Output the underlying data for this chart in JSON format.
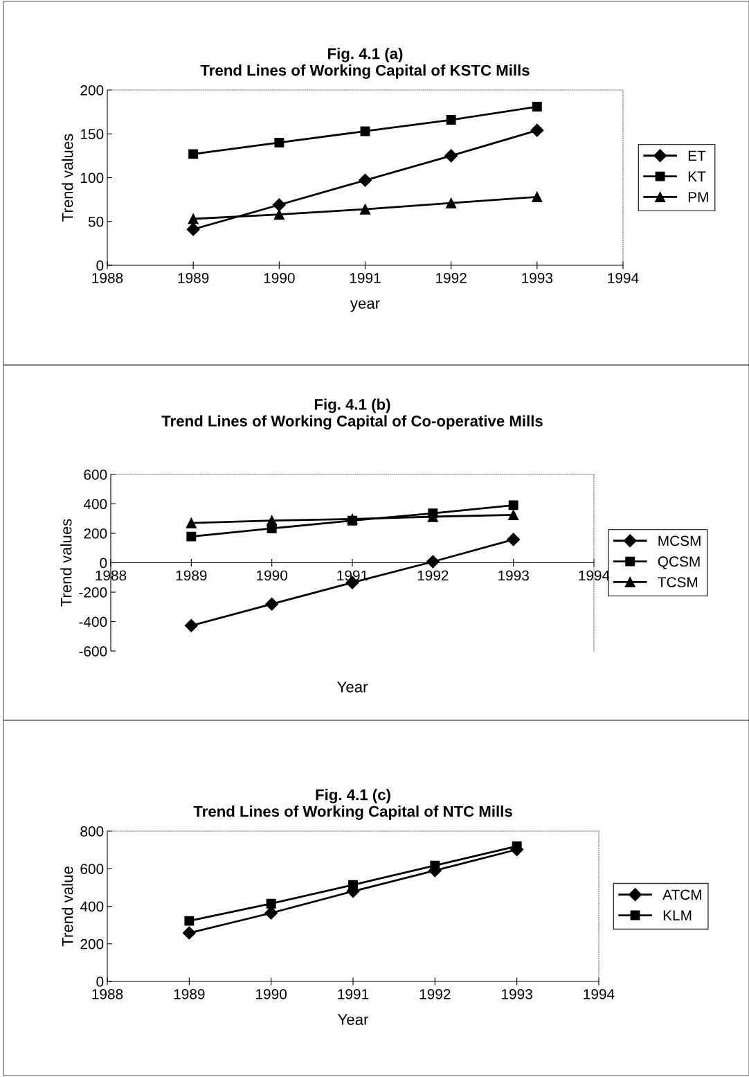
{
  "chart_data": [
    {
      "type": "line",
      "title": "Fig. 4.1 (a)\nTrend Lines of Working Capital of KSTC Mills",
      "xlabel": "year",
      "ylabel": "Trend values",
      "x": [
        1989,
        1990,
        1991,
        1992,
        1993
      ],
      "xlim": [
        1988,
        1994
      ],
      "xticks": [
        1988,
        1989,
        1990,
        1991,
        1992,
        1993,
        1994
      ],
      "ylim": [
        0,
        200
      ],
      "yticks": [
        0,
        50,
        100,
        150,
        200
      ],
      "legend": "right",
      "grid": false,
      "line_style": "solid",
      "series": [
        {
          "name": "ET",
          "color": "#000000",
          "marker": "diamond",
          "values": [
            41,
            69,
            97,
            125,
            154
          ]
        },
        {
          "name": "KT",
          "color": "#000000",
          "marker": "square",
          "values": [
            127,
            140,
            153,
            166,
            181
          ]
        },
        {
          "name": "PM",
          "color": "#000000",
          "marker": "triangle",
          "values": [
            53,
            58,
            64,
            71,
            78
          ]
        }
      ]
    },
    {
      "type": "line",
      "title": "Fig. 4.1 (b)\nTrend Lines of Working Capital of Co-operative Mills",
      "xlabel": "Year",
      "ylabel": "Trend values",
      "x": [
        1989,
        1990,
        1991,
        1992,
        1993
      ],
      "xlim": [
        1988,
        1994
      ],
      "xticks": [
        1988,
        1989,
        1990,
        1991,
        1992,
        1993,
        1994
      ],
      "ylim": [
        -600,
        600
      ],
      "yticks": [
        -600,
        -400,
        -200,
        0,
        200,
        400,
        600
      ],
      "legend": "right",
      "grid": false,
      "line_style": "solid",
      "series": [
        {
          "name": "MCSM",
          "color": "#000000",
          "marker": "diamond",
          "values": [
            -427,
            -281,
            -135,
            7,
            158
          ]
        },
        {
          "name": "QCSM",
          "color": "#000000",
          "marker": "square",
          "values": [
            178,
            233,
            286,
            336,
            391
          ]
        },
        {
          "name": "TCSM",
          "color": "#000000",
          "marker": "triangle",
          "values": [
            270,
            286,
            297,
            313,
            325
          ]
        }
      ]
    },
    {
      "type": "line",
      "title": "Fig. 4.1 (c)\nTrend Lines of Working Capital of NTC Mills",
      "xlabel": "Year",
      "ylabel": "Trend value",
      "x": [
        1989,
        1990,
        1991,
        1992,
        1993
      ],
      "xlim": [
        1988,
        1994
      ],
      "xticks": [
        1988,
        1989,
        1990,
        1991,
        1992,
        1993,
        1994
      ],
      "ylim": [
        0,
        800
      ],
      "yticks": [
        0,
        200,
        400,
        600,
        800
      ],
      "legend": "right",
      "grid": false,
      "line_style": "solid",
      "series": [
        {
          "name": "ATCM",
          "color": "#000000",
          "marker": "diamond",
          "values": [
            258,
            364,
            480,
            590,
            702
          ]
        },
        {
          "name": "KLM",
          "color": "#000000",
          "marker": "square",
          "values": [
            322,
            414,
            514,
            617,
            720
          ]
        }
      ]
    }
  ]
}
